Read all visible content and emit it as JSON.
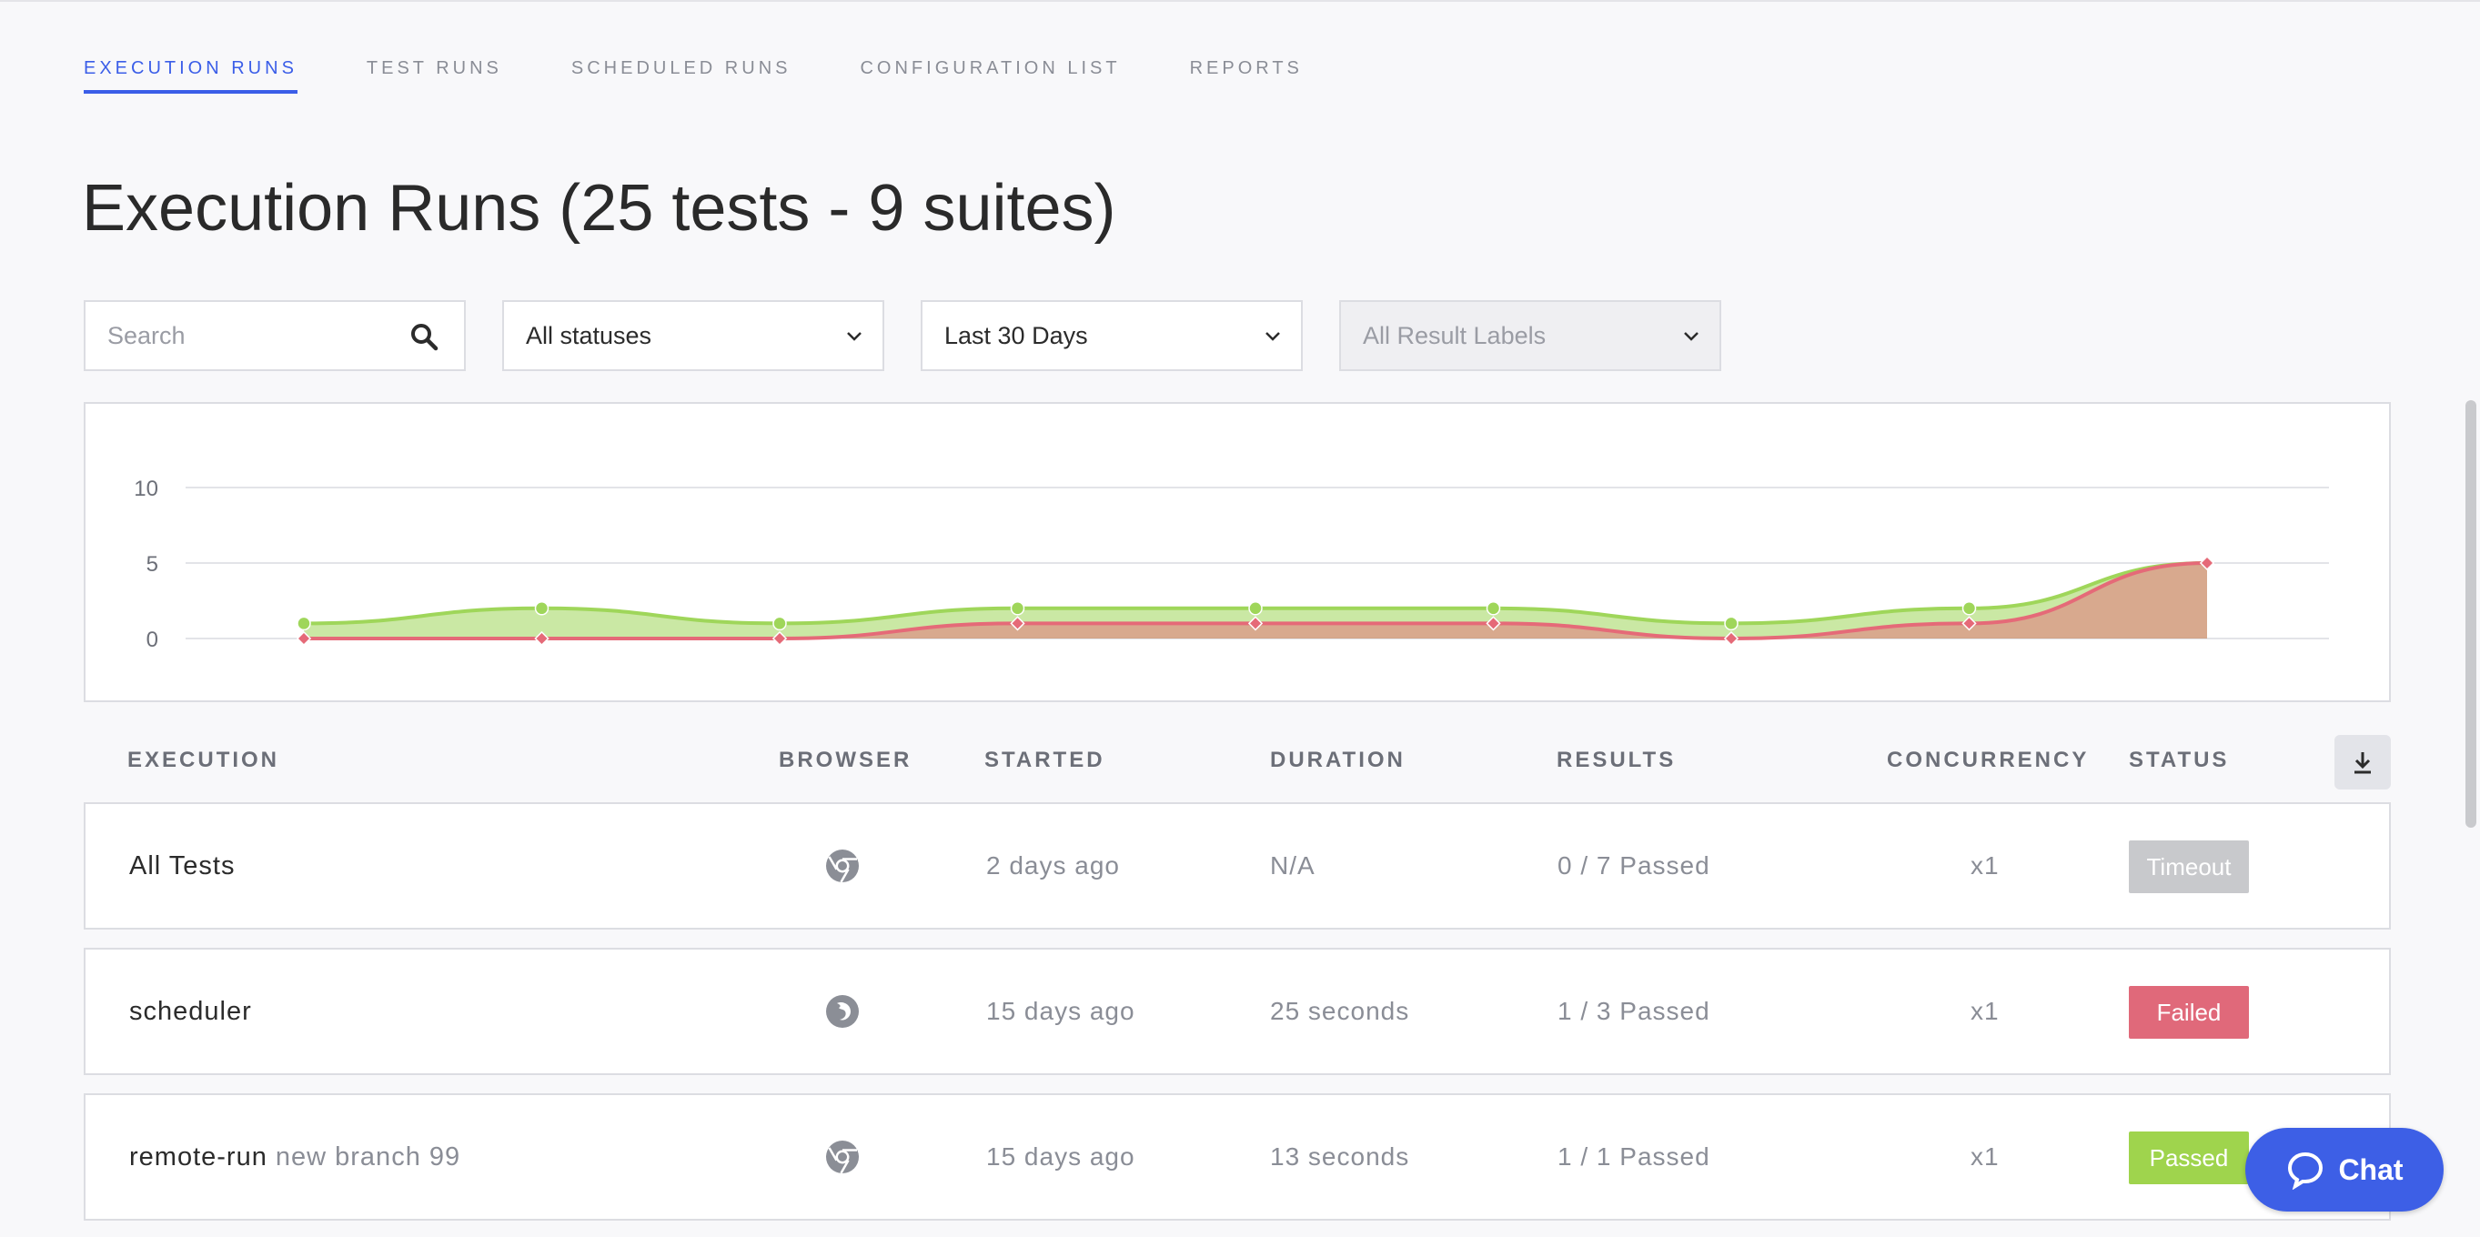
{
  "tabs": [
    {
      "label": "EXECUTION RUNS",
      "active": true
    },
    {
      "label": "TEST RUNS"
    },
    {
      "label": "SCHEDULED RUNS"
    },
    {
      "label": "CONFIGURATION LIST"
    },
    {
      "label": "REPORTS"
    }
  ],
  "page": {
    "title": "Execution Runs",
    "subtitle": "(25 tests - 9 suites)"
  },
  "filters": {
    "search_placeholder": "Search",
    "status": "All statuses",
    "date_range": "Last 30 Days",
    "result_labels": "All Result Labels"
  },
  "chart_data": {
    "type": "area",
    "y_ticks": [
      "10",
      "5",
      "0"
    ],
    "ylim": [
      0,
      11
    ],
    "grid": true,
    "colors": {
      "passed": "#9fd65a",
      "failed": "#e56a78"
    },
    "series": [
      {
        "key": "total",
        "values": [
          1,
          2,
          1,
          2,
          2,
          2,
          1,
          2,
          5
        ]
      },
      {
        "key": "failed",
        "values": [
          0,
          0,
          0,
          1,
          1,
          1,
          0,
          1,
          5
        ]
      }
    ]
  },
  "table": {
    "headers": {
      "execution": "EXECUTION",
      "browser": "BROWSER",
      "started": "STARTED",
      "duration": "DURATION",
      "results": "RESULTS",
      "concurrency": "CONCURRENCY",
      "status": "STATUS"
    },
    "rows": [
      {
        "name": "All Tests",
        "branch": "",
        "browser": "chrome-icon",
        "started": "2 days ago",
        "duration": "N/A",
        "results": "0 / 7 Passed",
        "concurrency": "x1",
        "status": "Timeout",
        "status_color": "#c8c9cc"
      },
      {
        "name": "scheduler",
        "branch": "",
        "browser": "firefox-icon",
        "started": "15 days ago",
        "duration": "25 seconds",
        "results": "1 / 3 Passed",
        "concurrency": "x1",
        "status": "Failed",
        "status_color": "#e0697a"
      },
      {
        "name": "remote-run",
        "branch": "new branch 99",
        "browser": "chrome-icon",
        "started": "15 days ago",
        "duration": "13 seconds",
        "results": "1 / 1 Passed",
        "concurrency": "x1",
        "status": "Passed",
        "status_color": "#9fd44d"
      }
    ]
  },
  "chat": {
    "label": "Chat"
  }
}
